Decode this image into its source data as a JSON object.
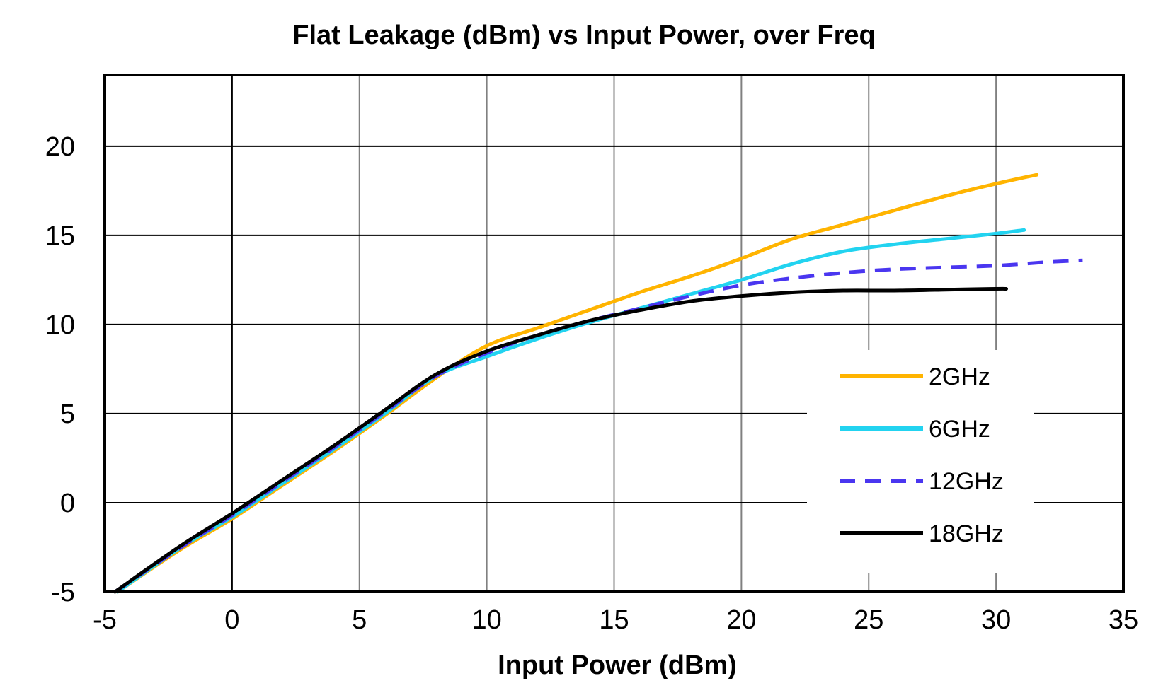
{
  "chart_data": {
    "type": "line",
    "title": "Flat Leakage (dBm) vs Input Power, over Freq",
    "xlabel": "Input Power (dBm)",
    "ylabel": "",
    "xlim": [
      -5,
      35
    ],
    "ylim": [
      -5,
      24
    ],
    "xticks": [
      -5,
      0,
      5,
      10,
      15,
      20,
      25,
      30,
      35
    ],
    "yticks": [
      -5,
      0,
      5,
      10,
      15,
      20
    ],
    "grid": true,
    "legend_position": "right",
    "series": [
      {
        "name": "2GHz",
        "color": "#FFB400",
        "dashed": false,
        "x": [
          -4.5,
          -2,
          0,
          2,
          4,
          6,
          8,
          10,
          12,
          14,
          16,
          18,
          20,
          22,
          24,
          26,
          28,
          30,
          31.6
        ],
        "y": [
          -5,
          -2.6,
          -0.9,
          1.0,
          2.9,
          4.9,
          7.0,
          8.8,
          9.8,
          10.8,
          11.8,
          12.7,
          13.7,
          14.8,
          15.6,
          16.4,
          17.2,
          17.9,
          18.4
        ]
      },
      {
        "name": "6GHz",
        "color": "#22D3F0",
        "dashed": false,
        "x": [
          -4.5,
          -2,
          0,
          2,
          4,
          6,
          8,
          10,
          12,
          14,
          16,
          18,
          20,
          22,
          24,
          26,
          28,
          30,
          31.1
        ],
        "y": [
          -5,
          -2.5,
          -0.8,
          1.1,
          3.0,
          5.0,
          7.1,
          8.2,
          9.2,
          10.1,
          10.9,
          11.7,
          12.5,
          13.4,
          14.1,
          14.5,
          14.8,
          15.1,
          15.3
        ]
      },
      {
        "name": "12GHz",
        "color": "#4A36F0",
        "dashed": true,
        "x": [
          -4.6,
          -2,
          0,
          2,
          4,
          6,
          8,
          10,
          12,
          14,
          16,
          18,
          20,
          22,
          24,
          26,
          28,
          30,
          32,
          33.4
        ],
        "y": [
          -5,
          -2.5,
          -0.7,
          1.2,
          3.1,
          5.1,
          7.1,
          8.4,
          9.4,
          10.2,
          10.9,
          11.6,
          12.2,
          12.6,
          12.9,
          13.1,
          13.2,
          13.3,
          13.5,
          13.6
        ]
      },
      {
        "name": "18GHz",
        "color": "#000000",
        "dashed": false,
        "x": [
          -4.6,
          -2,
          0,
          2,
          4,
          6,
          8,
          10,
          12,
          14,
          16,
          18,
          20,
          22,
          24,
          26,
          28,
          30,
          30.4
        ],
        "y": [
          -5,
          -2.4,
          -0.6,
          1.3,
          3.2,
          5.2,
          7.2,
          8.5,
          9.4,
          10.2,
          10.8,
          11.3,
          11.6,
          11.8,
          11.9,
          11.9,
          11.95,
          12.0,
          12.0
        ]
      }
    ]
  }
}
